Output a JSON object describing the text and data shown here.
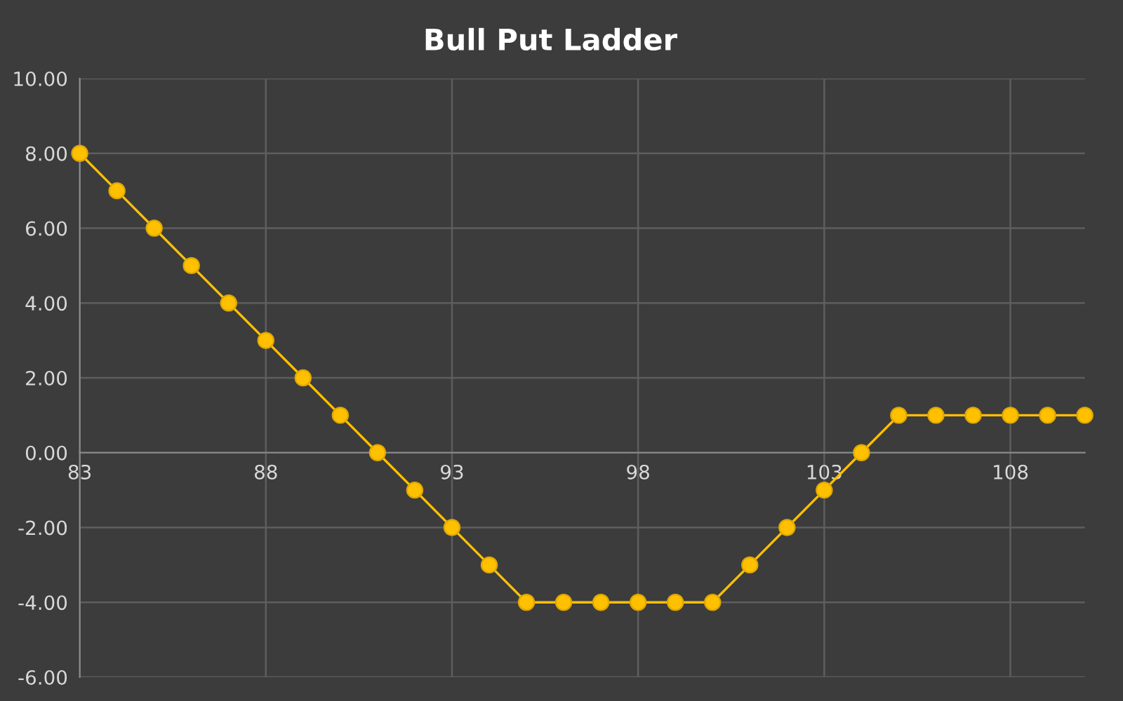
{
  "chart_data": {
    "type": "line",
    "title": "Bull Put Ladder",
    "x": [
      83,
      84,
      85,
      86,
      87,
      88,
      89,
      90,
      91,
      92,
      93,
      94,
      95,
      96,
      97,
      98,
      99,
      100,
      101,
      102,
      103,
      104,
      105,
      106,
      107,
      108,
      109,
      110
    ],
    "series": [
      {
        "color": "#ffc000",
        "values": [
          8,
          7,
          6,
          5,
          4,
          3,
          2,
          1,
          0,
          -1,
          -2,
          -3,
          -4,
          -4,
          -4,
          -4,
          -4,
          -4,
          -3,
          -2,
          -1,
          0,
          1,
          1,
          1,
          1,
          1,
          1
        ]
      }
    ],
    "xlim": [
      83,
      110
    ],
    "xticks": [
      83,
      88,
      93,
      98,
      103,
      108
    ],
    "ylim": [
      -6,
      10
    ],
    "yticks": [
      {
        "value": -6,
        "label": "-6.00"
      },
      {
        "value": -4,
        "label": "-4.00"
      },
      {
        "value": -2,
        "label": "-2.00"
      },
      {
        "value": 0,
        "label": "0.00"
      },
      {
        "value": 2,
        "label": "2.00"
      },
      {
        "value": 4,
        "label": "4.00"
      },
      {
        "value": 6,
        "label": "6.00"
      },
      {
        "value": 8,
        "label": "8.00"
      },
      {
        "value": 10,
        "label": "10.00"
      }
    ],
    "grid": true,
    "marker": "circle",
    "line_style": "solid"
  }
}
